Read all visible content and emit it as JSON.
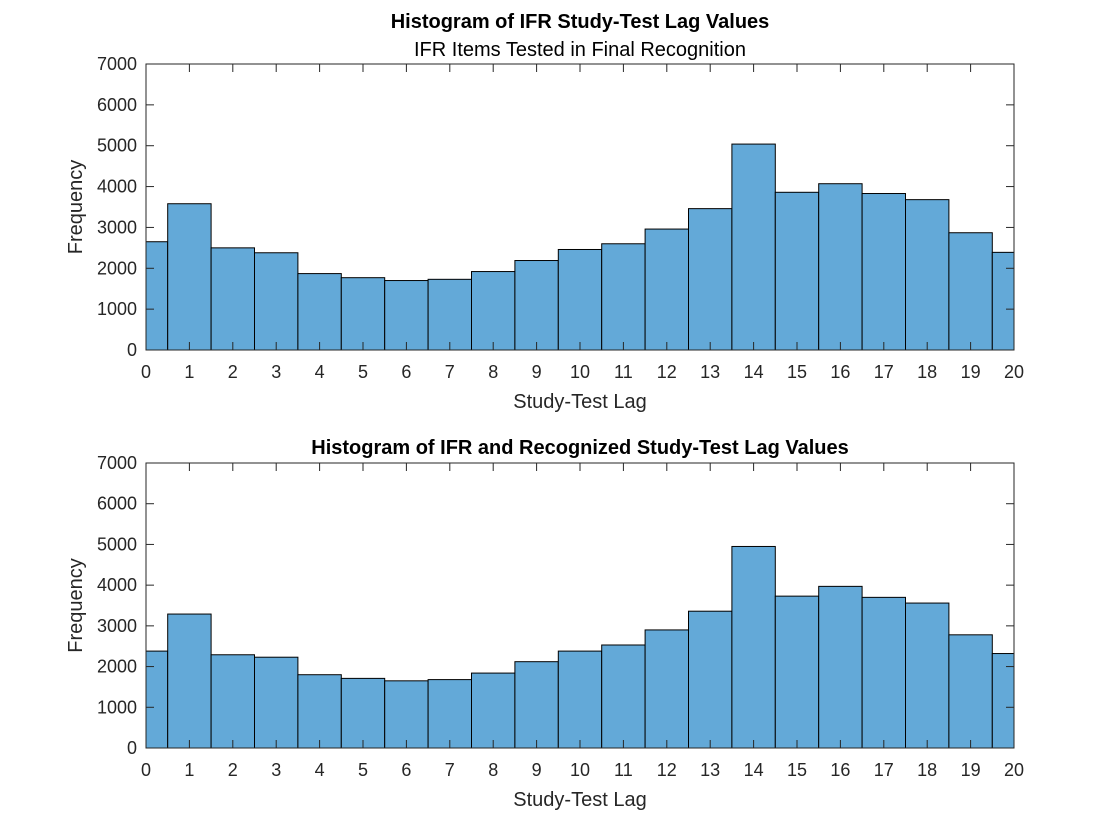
{
  "chart_data": [
    {
      "type": "bar",
      "title": "Histogram of IFR Study-Test Lag Values",
      "subtitle": "IFR Items Tested in Final Recognition",
      "xlabel": "Study-Test Lag",
      "ylabel": "Frequency",
      "xlim": [
        0,
        20
      ],
      "ylim": [
        0,
        7000
      ],
      "xticks": [
        0,
        1,
        2,
        3,
        4,
        5,
        6,
        7,
        8,
        9,
        10,
        11,
        12,
        13,
        14,
        15,
        16,
        17,
        18,
        19,
        20
      ],
      "yticks": [
        0,
        1000,
        2000,
        3000,
        4000,
        5000,
        6000,
        7000
      ],
      "bin_edges": [
        0,
        0.5,
        1.5,
        2.5,
        3.5,
        4.5,
        5.5,
        6.5,
        7.5,
        8.5,
        9.5,
        10.5,
        11.5,
        12.5,
        13.5,
        14.5,
        15.5,
        16.5,
        17.5,
        18.5,
        19.5,
        20
      ],
      "values": [
        2650,
        3580,
        2500,
        2380,
        1870,
        1770,
        1700,
        1730,
        1920,
        2190,
        2460,
        2600,
        2960,
        3460,
        5040,
        3860,
        4070,
        3830,
        3680,
        2870,
        2390
      ],
      "grid": false,
      "color": "#63a9d8"
    },
    {
      "type": "bar",
      "title": "Histogram of IFR and Recognized Study-Test Lag Values",
      "subtitle": "",
      "xlabel": "Study-Test Lag",
      "ylabel": "Frequency",
      "xlim": [
        0,
        20
      ],
      "ylim": [
        0,
        7000
      ],
      "xticks": [
        0,
        1,
        2,
        3,
        4,
        5,
        6,
        7,
        8,
        9,
        10,
        11,
        12,
        13,
        14,
        15,
        16,
        17,
        18,
        19,
        20
      ],
      "yticks": [
        0,
        1000,
        2000,
        3000,
        4000,
        5000,
        6000,
        7000
      ],
      "bin_edges": [
        0,
        0.5,
        1.5,
        2.5,
        3.5,
        4.5,
        5.5,
        6.5,
        7.5,
        8.5,
        9.5,
        10.5,
        11.5,
        12.5,
        13.5,
        14.5,
        15.5,
        16.5,
        17.5,
        18.5,
        19.5,
        20
      ],
      "values": [
        2380,
        3290,
        2290,
        2230,
        1800,
        1710,
        1650,
        1680,
        1840,
        2120,
        2380,
        2530,
        2900,
        3360,
        4950,
        3730,
        3970,
        3700,
        3560,
        2780,
        2320
      ],
      "grid": false,
      "color": "#63a9d8"
    }
  ]
}
